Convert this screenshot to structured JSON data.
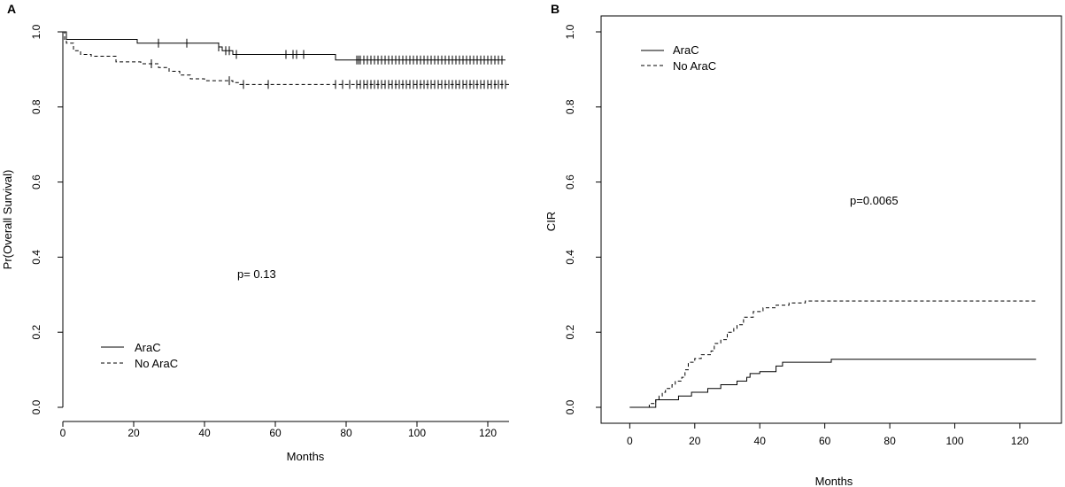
{
  "chart_data": [
    {
      "panel": "A",
      "type": "line",
      "step": true,
      "ylabel": "Pr(Overall Survival)",
      "xlabel": "Months",
      "xlim": [
        0,
        126
      ],
      "ylim": [
        0,
        1
      ],
      "xticks": [
        "0",
        "20",
        "40",
        "60",
        "80",
        "100",
        "120"
      ],
      "yticks": [
        "0.0",
        "0.2",
        "0.4",
        "0.6",
        "0.8",
        "1.0"
      ],
      "annotation": "p= 0.13",
      "legend": {
        "position": "bottom-left",
        "entries": [
          {
            "label": "AraC",
            "style": "solid"
          },
          {
            "label": "No AraC",
            "style": "dashed"
          }
        ]
      },
      "series": [
        {
          "name": "AraC",
          "style": "solid",
          "points": [
            [
              0,
              1.0
            ],
            [
              1,
              0.98
            ],
            [
              21,
              0.97
            ],
            [
              44,
              0.96
            ],
            [
              45,
              0.95
            ],
            [
              48,
              0.94
            ],
            [
              77,
              0.925
            ],
            [
              125,
              0.925
            ]
          ],
          "censored_x": [
            27,
            35,
            44,
            46,
            47,
            49,
            63,
            65,
            66,
            68,
            83,
            83.5,
            84,
            85,
            86,
            87,
            88,
            89,
            90,
            91,
            92,
            93,
            94,
            95,
            96,
            97,
            98,
            99,
            100,
            101,
            102,
            103,
            104,
            105,
            106,
            107,
            108,
            109,
            110,
            111,
            112,
            113,
            114,
            115,
            116,
            117,
            118,
            119,
            120,
            121,
            122,
            123,
            124
          ]
        },
        {
          "name": "No AraC",
          "style": "dashed",
          "points": [
            [
              0,
              1.0
            ],
            [
              0.5,
              0.98
            ],
            [
              1,
              0.97
            ],
            [
              3,
              0.95
            ],
            [
              5,
              0.94
            ],
            [
              8,
              0.935
            ],
            [
              15,
              0.92
            ],
            [
              22,
              0.915
            ],
            [
              27,
              0.905
            ],
            [
              30,
              0.895
            ],
            [
              33,
              0.885
            ],
            [
              36,
              0.875
            ],
            [
              40,
              0.87
            ],
            [
              48,
              0.865
            ],
            [
              50,
              0.86
            ],
            [
              126,
              0.86
            ]
          ],
          "censored_x": [
            25,
            47,
            51,
            58,
            77,
            79,
            81,
            83,
            84,
            85,
            86,
            87,
            88,
            89,
            90,
            91,
            92,
            93,
            94,
            95,
            96,
            97,
            98,
            99,
            100,
            101,
            102,
            103,
            104,
            105,
            106,
            107,
            108,
            109,
            110,
            111,
            112,
            113,
            114,
            115,
            116,
            117,
            118,
            119,
            120,
            121,
            122,
            123,
            124,
            125
          ]
        }
      ]
    },
    {
      "panel": "B",
      "type": "line",
      "step": true,
      "ylabel": "CIR",
      "xlabel": "Months",
      "xlim": [
        -8,
        132
      ],
      "ylim": [
        0,
        1
      ],
      "xticks": [
        "0",
        "20",
        "40",
        "60",
        "80",
        "100",
        "120"
      ],
      "yticks": [
        "0.0",
        "0.2",
        "0.4",
        "0.6",
        "0.8",
        "1.0"
      ],
      "annotation": "p=0.0065",
      "legend": {
        "position": "top-left",
        "entries": [
          {
            "label": "AraC",
            "style": "solid"
          },
          {
            "label": "No AraC",
            "style": "dashed"
          }
        ]
      },
      "series": [
        {
          "name": "AraC",
          "style": "solid",
          "points": [
            [
              0,
              0.0
            ],
            [
              8,
              0.02
            ],
            [
              15,
              0.03
            ],
            [
              19,
              0.04
            ],
            [
              24,
              0.05
            ],
            [
              28,
              0.06
            ],
            [
              33,
              0.07
            ],
            [
              36,
              0.08
            ],
            [
              37,
              0.09
            ],
            [
              40,
              0.095
            ],
            [
              45,
              0.11
            ],
            [
              47,
              0.12
            ],
            [
              62,
              0.128
            ],
            [
              125,
              0.128
            ]
          ]
        },
        {
          "name": "No AraC",
          "style": "dashed",
          "points": [
            [
              0,
              0.0
            ],
            [
              6,
              0.01
            ],
            [
              8,
              0.02
            ],
            [
              9,
              0.03
            ],
            [
              10,
              0.04
            ],
            [
              11,
              0.05
            ],
            [
              13,
              0.06
            ],
            [
              14,
              0.07
            ],
            [
              16,
              0.08
            ],
            [
              17,
              0.1
            ],
            [
              18,
              0.12
            ],
            [
              20,
              0.13
            ],
            [
              22,
              0.14
            ],
            [
              25,
              0.15
            ],
            [
              26,
              0.17
            ],
            [
              28,
              0.18
            ],
            [
              30,
              0.2
            ],
            [
              32,
              0.21
            ],
            [
              33,
              0.22
            ],
            [
              35,
              0.24
            ],
            [
              38,
              0.255
            ],
            [
              41,
              0.265
            ],
            [
              45,
              0.272
            ],
            [
              49,
              0.278
            ],
            [
              54,
              0.283
            ],
            [
              125,
              0.283
            ]
          ]
        }
      ]
    }
  ]
}
